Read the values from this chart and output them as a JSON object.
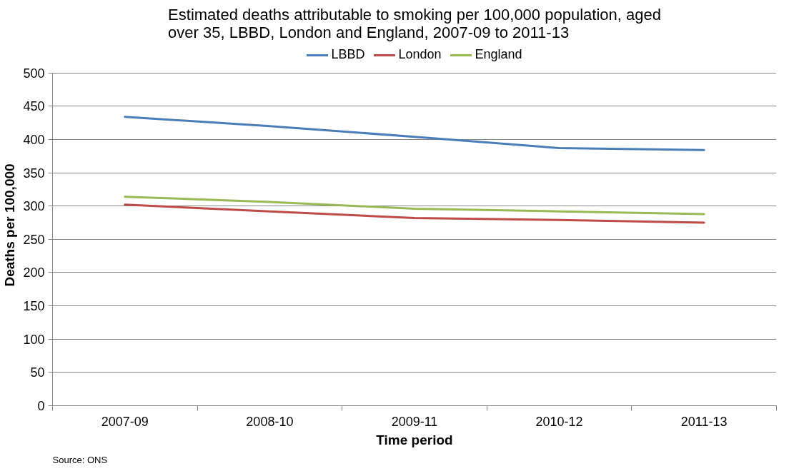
{
  "chart_data": {
    "type": "line",
    "title": "Estimated deaths attributable to smoking per 100,000 population, aged over 35, LBBD, London and England, 2007-09 to 2011-13",
    "xlabel": "Time period",
    "ylabel": "Deaths per 100,000",
    "annotations": [
      "Source: ONS"
    ],
    "categories": [
      "2007-09",
      "2008-10",
      "2009-11",
      "2010-12",
      "2011-13"
    ],
    "series": [
      {
        "name": "LBBD",
        "color": "#4a7ebb",
        "values": [
          434,
          420,
          404,
          387,
          384
        ]
      },
      {
        "name": "London",
        "color": "#be4b48",
        "values": [
          302,
          292,
          282,
          279,
          275
        ]
      },
      {
        "name": "England",
        "color": "#98b954",
        "values": [
          314,
          306,
          296,
          292,
          288
        ]
      }
    ],
    "ylim": [
      0,
      500
    ],
    "yticks": [
      0,
      50,
      100,
      150,
      200,
      250,
      300,
      350,
      400,
      450,
      500
    ],
    "grid": "y",
    "legend": "top"
  }
}
